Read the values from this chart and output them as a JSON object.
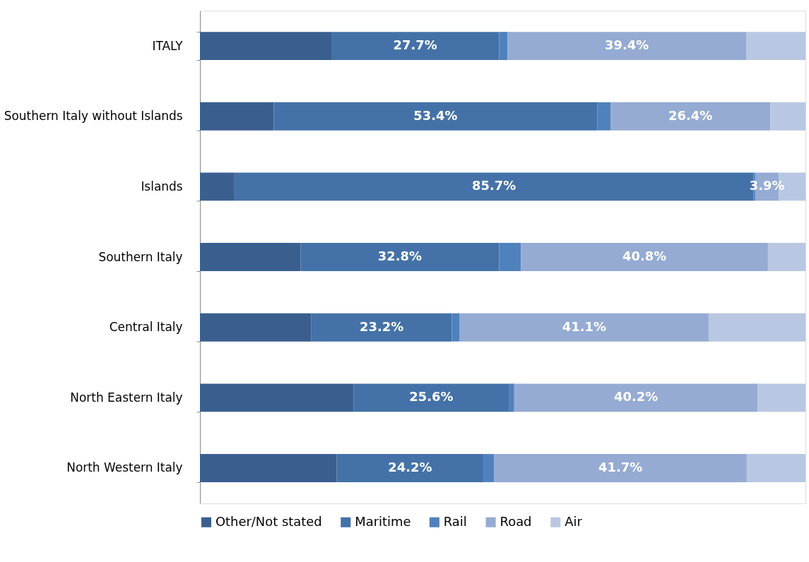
{
  "chart_data": {
    "type": "bar",
    "orientation": "horizontal",
    "stacked": true,
    "legend": "bottom",
    "grid": false,
    "categories": [
      "ITALY",
      "Southern Italy without Islands",
      "Islands",
      "Southern Italy",
      "Central Italy",
      "North Eastern Italy",
      "North Western Italy"
    ],
    "series": [
      {
        "name": "Other/Not stated",
        "color": "#3a5f8f",
        "values": [
          21.7,
          12.2,
          5.7,
          16.6,
          18.4,
          25.4,
          22.6
        ]
      },
      {
        "name": "Maritime",
        "color": "#4472a8",
        "values": [
          27.7,
          53.4,
          85.7,
          32.8,
          23.2,
          25.6,
          24.2
        ],
        "value_labels": [
          "27.7%",
          "53.4%",
          "85.7%",
          "32.8%",
          "23.2%",
          "25.6%",
          "24.2%"
        ]
      },
      {
        "name": "Rail",
        "color": "#4f81bd",
        "values": [
          1.4,
          2.2,
          0.3,
          3.6,
          1.3,
          0.9,
          1.8
        ]
      },
      {
        "name": "Road",
        "color": "#95abd3",
        "values": [
          39.4,
          26.4,
          3.9,
          40.8,
          41.1,
          40.2,
          41.7
        ],
        "value_labels": [
          "39.4%",
          "26.4%",
          "3.9%",
          "40.8%",
          "41.1%",
          "40.2%",
          "41.7%"
        ]
      },
      {
        "name": "Air",
        "color": "#b9c7e2",
        "values": [
          9.8,
          5.8,
          4.4,
          6.2,
          16.0,
          7.9,
          9.7
        ]
      }
    ]
  }
}
